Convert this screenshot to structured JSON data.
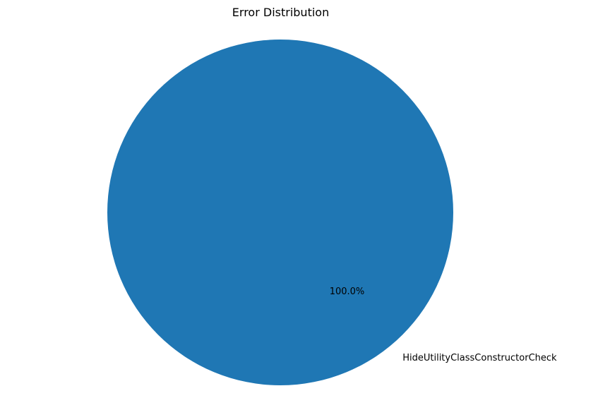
{
  "chart_data": {
    "type": "pie",
    "title": "Error Distribution",
    "labels": [
      "HideUtilityClassConstructorCheck"
    ],
    "values": [
      100
    ],
    "percent_labels": [
      "100.0%"
    ],
    "colors": [
      "#1f77b4"
    ],
    "legend": "none"
  }
}
